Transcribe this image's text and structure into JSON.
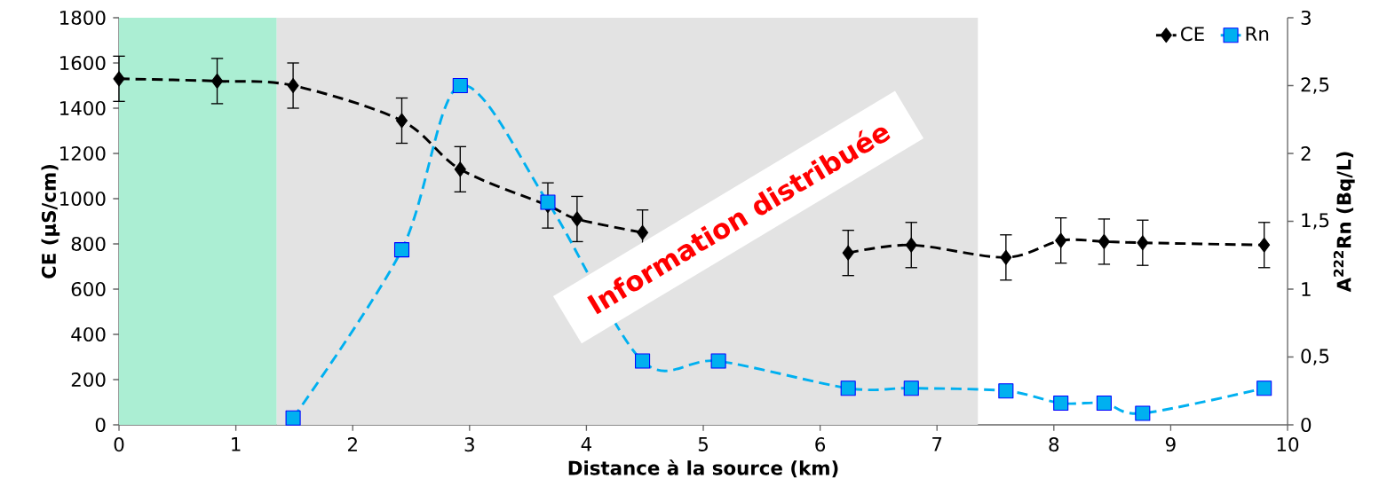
{
  "chart_data": {
    "type": "line",
    "xlabel": "Distance à la source (km)",
    "ylabel": "CE (µS/cm)",
    "y2label": "A$^{222}$Rn (Bq/L)",
    "xlim": [
      0,
      10
    ],
    "xticks": [
      0,
      1,
      2,
      3,
      4,
      5,
      6,
      7,
      8,
      9,
      10
    ],
    "ylim": [
      0,
      1800
    ],
    "yticks": [
      0,
      200,
      400,
      600,
      800,
      1000,
      1200,
      1400,
      1600,
      1800
    ],
    "y2lim": [
      0,
      3
    ],
    "y2ticks": [
      0,
      {
        "value": 0.5,
        "label": "0,5"
      },
      1,
      {
        "value": 1.5,
        "label": "1,5"
      },
      2,
      {
        "value": 2.5,
        "label": "2,5"
      },
      3
    ],
    "line_style": "dashed",
    "legend": "top right",
    "bands": [
      {
        "axis": "x",
        "from": 0,
        "to": 1.35,
        "color": "#abeed3"
      },
      {
        "axis": "x",
        "from": 1.35,
        "to": 7.35,
        "color": "#e3e3e3"
      }
    ],
    "annotations": [
      "Information distribuée"
    ],
    "series": [
      {
        "name": "CE",
        "color": "#000000",
        "marker": "diamond",
        "x": [
          0,
          0.84,
          1.49,
          2.42,
          2.92,
          3.67,
          3.92,
          4.48,
          5.1,
          6.24,
          6.78,
          7.59,
          8.06,
          8.43,
          8.76,
          9.8
        ],
        "values": [
          1530,
          1520,
          1500,
          1345,
          1130,
          970,
          910,
          850,
          null,
          760,
          795,
          740,
          815,
          810,
          805,
          795
        ],
        "errors": [
          100,
          100,
          100,
          100,
          100,
          100,
          100,
          100,
          null,
          100,
          100,
          100,
          100,
          100,
          100,
          100
        ]
      },
      {
        "name": "Rn",
        "color": "#00b0f0",
        "marker": "square",
        "axis": "y2",
        "x": [
          1.49,
          2.42,
          2.92,
          3.67,
          4.48,
          5.13,
          6.24,
          6.78,
          7.59,
          8.06,
          8.43,
          8.76,
          9.8
        ],
        "values": [
          0.05,
          1.29,
          2.5,
          1.64,
          0.47,
          0.47,
          0.27,
          0.27,
          0.25,
          0.16,
          0.16,
          0.085,
          0.27
        ]
      }
    ]
  }
}
